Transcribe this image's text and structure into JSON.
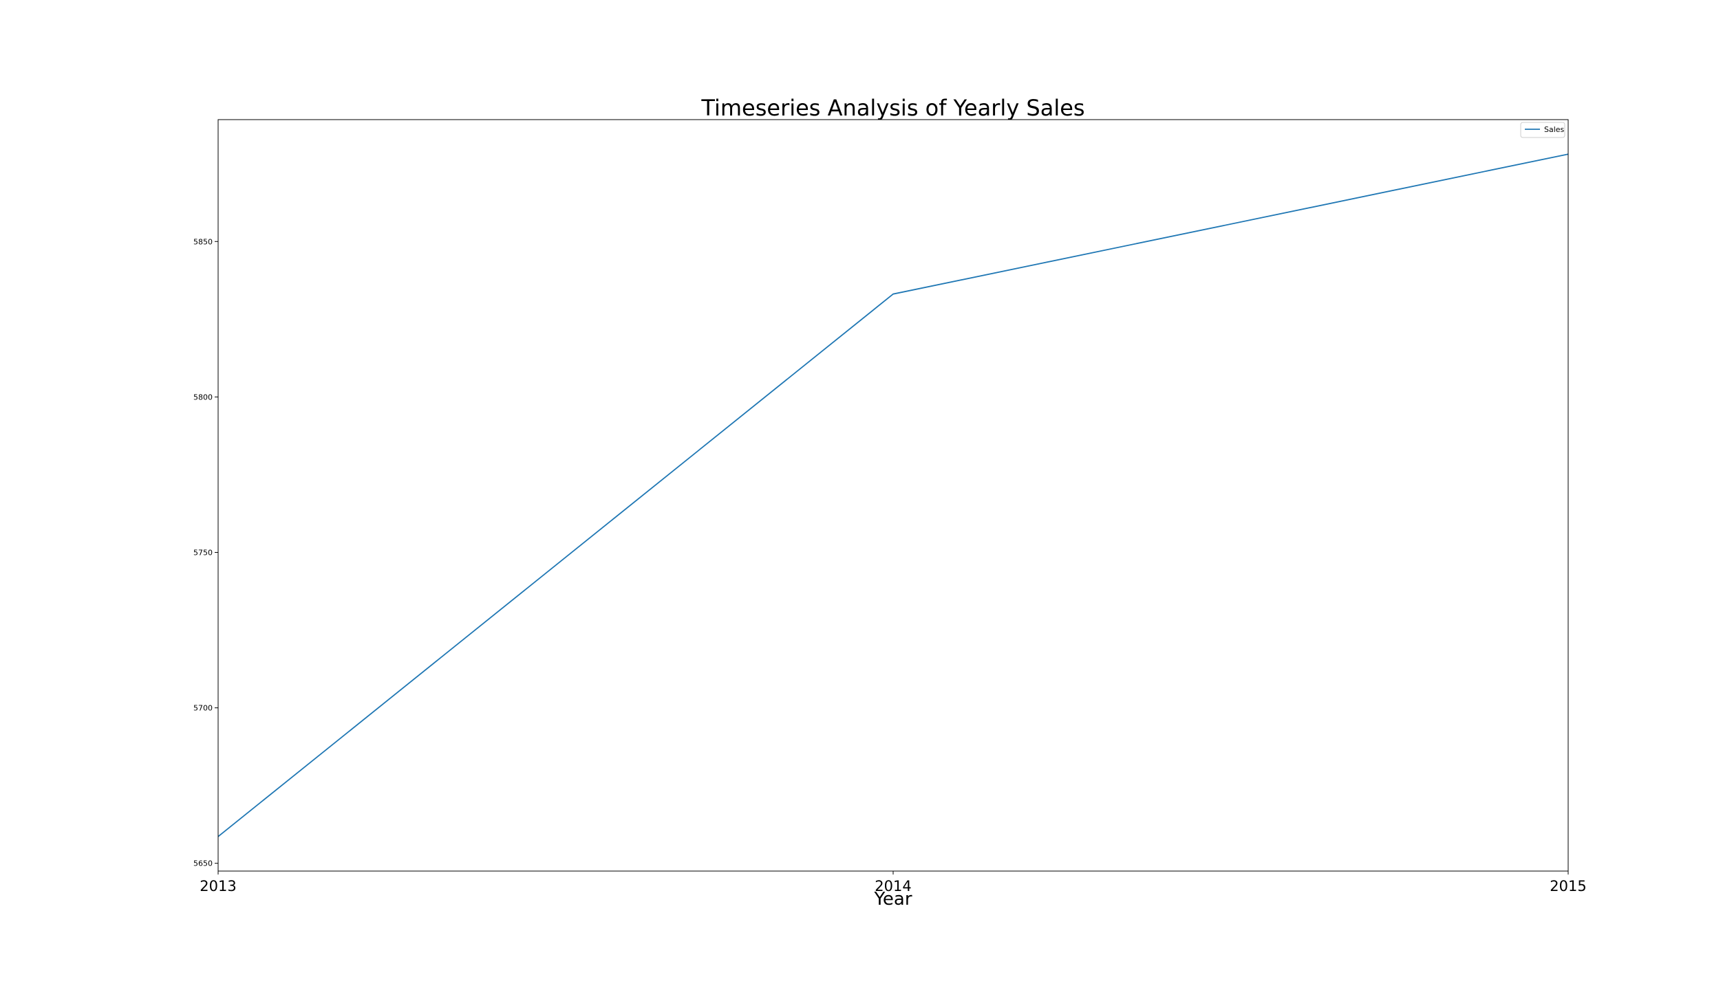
{
  "chart_data": {
    "type": "line",
    "title": "Timeseries Analysis of Yearly Sales",
    "xlabel": "Year",
    "ylabel": "",
    "x": [
      "2013",
      "2014",
      "2015"
    ],
    "series": [
      {
        "name": "Sales",
        "color": "#1f77b4",
        "values": [
          5658.6,
          5833.1,
          5878.1
        ]
      }
    ],
    "xlim": [
      "2013",
      "2015"
    ],
    "ylim": [
      5647.5,
      5889.2
    ],
    "yticks": [
      5650,
      5700,
      5750,
      5800,
      5850
    ],
    "ytick_labels": [
      "5650",
      "5700",
      "5750",
      "5800",
      "5850"
    ],
    "grid": false,
    "legend_position": "top-right"
  }
}
